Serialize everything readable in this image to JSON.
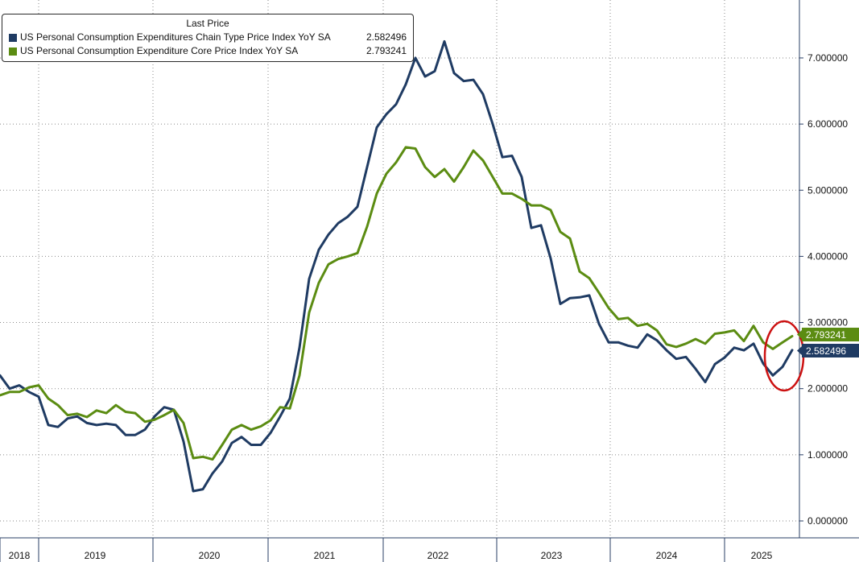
{
  "chart_data": {
    "type": "line",
    "legend": {
      "title": "Last Price",
      "placement": "top-left"
    },
    "series": [
      {
        "name": "US Personal Consumption Expenditures Chain Type Price Index YoY SA",
        "last_value_label": "2.582496",
        "color": "#1f3b63",
        "values": [
          2.2,
          2.0,
          2.05,
          1.95,
          1.88,
          1.45,
          1.42,
          1.55,
          1.58,
          1.48,
          1.45,
          1.47,
          1.45,
          1.3,
          1.3,
          1.38,
          1.58,
          1.72,
          1.68,
          1.2,
          0.45,
          0.48,
          0.72,
          0.9,
          1.18,
          1.27,
          1.15,
          1.15,
          1.33,
          1.58,
          1.85,
          2.62,
          3.66,
          4.1,
          4.33,
          4.5,
          4.6,
          4.75,
          5.35,
          5.95,
          6.15,
          6.3,
          6.6,
          7.0,
          6.72,
          6.8,
          7.25,
          6.77,
          6.65,
          6.67,
          6.45,
          6.0,
          5.5,
          5.52,
          5.2,
          4.43,
          4.47,
          3.97,
          3.28,
          3.37,
          3.38,
          3.41,
          2.98,
          2.7,
          2.7,
          2.65,
          2.62,
          2.82,
          2.73,
          2.58,
          2.45,
          2.48,
          2.3,
          2.1,
          2.37,
          2.47,
          2.62,
          2.58,
          2.68,
          2.38,
          2.2,
          2.33,
          2.582496
        ]
      },
      {
        "name": "US Personal Consumption Expenditure Core Price Index YoY SA",
        "last_value_label": "2.793241",
        "color": "#5b8c12",
        "values": [
          1.9,
          1.95,
          1.95,
          2.02,
          2.05,
          1.85,
          1.75,
          1.6,
          1.62,
          1.57,
          1.67,
          1.63,
          1.75,
          1.65,
          1.63,
          1.5,
          1.53,
          1.6,
          1.68,
          1.48,
          0.95,
          0.97,
          0.93,
          1.15,
          1.38,
          1.45,
          1.38,
          1.43,
          1.52,
          1.72,
          1.7,
          2.2,
          3.15,
          3.6,
          3.88,
          3.96,
          4.0,
          4.05,
          4.45,
          4.95,
          5.25,
          5.42,
          5.65,
          5.63,
          5.35,
          5.2,
          5.32,
          5.13,
          5.35,
          5.6,
          5.45,
          5.2,
          4.95,
          4.95,
          4.87,
          4.77,
          4.77,
          4.7,
          4.37,
          4.27,
          3.77,
          3.67,
          3.45,
          3.22,
          3.05,
          3.07,
          2.95,
          2.98,
          2.88,
          2.67,
          2.63,
          2.68,
          2.75,
          2.68,
          2.83,
          2.85,
          2.88,
          2.72,
          2.95,
          2.7,
          2.6,
          2.7,
          2.793241
        ]
      }
    ],
    "x_tick_labels": [
      "2018",
      "2019",
      "2020",
      "2021",
      "2022",
      "2023",
      "2024",
      "2025"
    ],
    "y_tick_labels": [
      "0.000000",
      "1.000000",
      "2.000000",
      "3.000000",
      "4.000000",
      "5.000000",
      "6.000000",
      "7.000000"
    ],
    "ylim": [
      -0.1,
      7.9
    ],
    "y_axis_position": "right",
    "grid": true,
    "xlabel": "",
    "ylabel": "",
    "title": ""
  },
  "annotation": {
    "type": "ellipse",
    "color": "#cc1111",
    "target": "latest values"
  },
  "colors": {
    "grid": "#8a8a8a",
    "axis": "#2a3f66",
    "background": "#ffffff"
  }
}
